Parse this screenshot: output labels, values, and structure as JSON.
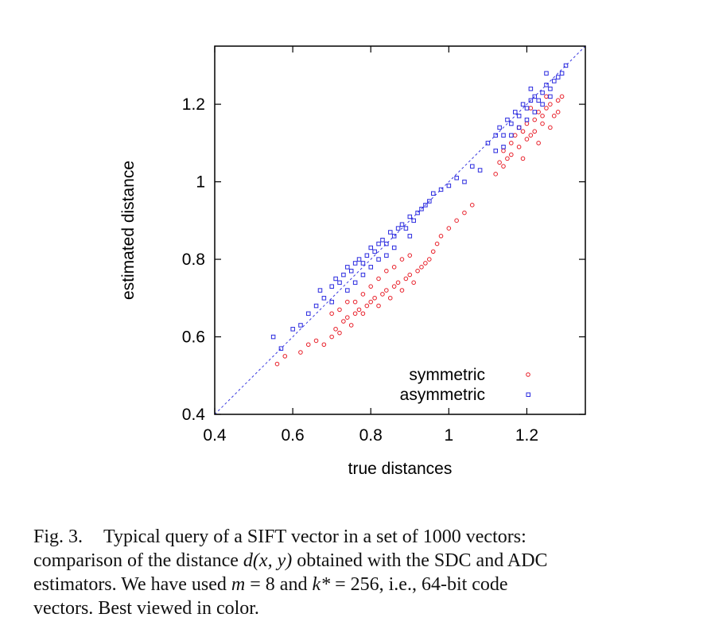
{
  "chart_data": {
    "type": "scatter",
    "xlabel": "true distances",
    "ylabel": "estimated distance",
    "xlim": [
      0.4,
      1.35
    ],
    "ylim": [
      0.4,
      1.35
    ],
    "xticks": [
      "0.4",
      "0.6",
      "0.8",
      "1",
      "1.2"
    ],
    "yticks": [
      "0.4",
      "0.6",
      "0.8",
      "1",
      "1.2"
    ],
    "xtick_values": [
      0.4,
      0.6,
      0.8,
      1.0,
      1.2
    ],
    "ytick_values": [
      0.4,
      0.6,
      0.8,
      1.0,
      1.2
    ],
    "reference_line": "y = x (dashed)",
    "legend_position": "bottom-right",
    "series": [
      {
        "name": "symmetric",
        "color": "#e8202a",
        "marker": "circle",
        "points": [
          [
            0.56,
            0.53
          ],
          [
            0.58,
            0.55
          ],
          [
            0.62,
            0.56
          ],
          [
            0.64,
            0.58
          ],
          [
            0.66,
            0.59
          ],
          [
            0.68,
            0.58
          ],
          [
            0.7,
            0.6
          ],
          [
            0.71,
            0.62
          ],
          [
            0.72,
            0.61
          ],
          [
            0.73,
            0.64
          ],
          [
            0.74,
            0.65
          ],
          [
            0.75,
            0.63
          ],
          [
            0.76,
            0.66
          ],
          [
            0.77,
            0.67
          ],
          [
            0.78,
            0.66
          ],
          [
            0.79,
            0.68
          ],
          [
            0.8,
            0.69
          ],
          [
            0.81,
            0.7
          ],
          [
            0.82,
            0.68
          ],
          [
            0.83,
            0.71
          ],
          [
            0.84,
            0.72
          ],
          [
            0.85,
            0.7
          ],
          [
            0.86,
            0.73
          ],
          [
            0.87,
            0.74
          ],
          [
            0.88,
            0.72
          ],
          [
            0.89,
            0.75
          ],
          [
            0.9,
            0.76
          ],
          [
            0.91,
            0.74
          ],
          [
            0.92,
            0.77
          ],
          [
            0.93,
            0.78
          ],
          [
            0.94,
            0.79
          ],
          [
            0.95,
            0.8
          ],
          [
            0.96,
            0.82
          ],
          [
            0.97,
            0.84
          ],
          [
            0.98,
            0.86
          ],
          [
            1.0,
            0.88
          ],
          [
            1.02,
            0.9
          ],
          [
            1.04,
            0.92
          ],
          [
            1.06,
            0.94
          ],
          [
            0.76,
            0.69
          ],
          [
            0.78,
            0.71
          ],
          [
            0.8,
            0.73
          ],
          [
            0.82,
            0.75
          ],
          [
            0.84,
            0.77
          ],
          [
            0.86,
            0.78
          ],
          [
            0.88,
            0.8
          ],
          [
            0.9,
            0.81
          ],
          [
            0.72,
            0.67
          ],
          [
            0.74,
            0.69
          ],
          [
            0.7,
            0.66
          ],
          [
            1.12,
            1.02
          ],
          [
            1.13,
            1.05
          ],
          [
            1.14,
            1.08
          ],
          [
            1.15,
            1.06
          ],
          [
            1.16,
            1.1
          ],
          [
            1.17,
            1.12
          ],
          [
            1.18,
            1.09
          ],
          [
            1.19,
            1.13
          ],
          [
            1.2,
            1.15
          ],
          [
            1.21,
            1.12
          ],
          [
            1.22,
            1.16
          ],
          [
            1.23,
            1.18
          ],
          [
            1.24,
            1.15
          ],
          [
            1.25,
            1.19
          ],
          [
            1.26,
            1.2
          ],
          [
            1.27,
            1.17
          ],
          [
            1.28,
            1.21
          ],
          [
            1.29,
            1.22
          ],
          [
            1.18,
            1.14
          ],
          [
            1.2,
            1.11
          ],
          [
            1.22,
            1.13
          ],
          [
            1.24,
            1.17
          ],
          [
            1.26,
            1.14
          ],
          [
            1.16,
            1.07
          ],
          [
            1.14,
            1.04
          ],
          [
            1.21,
            1.19
          ],
          [
            1.25,
            1.22
          ],
          [
            1.28,
            1.18
          ],
          [
            1.19,
            1.06
          ],
          [
            1.23,
            1.1
          ]
        ]
      },
      {
        "name": "asymmetric",
        "color": "#2a2adf",
        "marker": "square",
        "points": [
          [
            0.55,
            0.6
          ],
          [
            0.57,
            0.57
          ],
          [
            0.6,
            0.62
          ],
          [
            0.62,
            0.63
          ],
          [
            0.64,
            0.66
          ],
          [
            0.66,
            0.68
          ],
          [
            0.67,
            0.72
          ],
          [
            0.68,
            0.7
          ],
          [
            0.7,
            0.73
          ],
          [
            0.71,
            0.75
          ],
          [
            0.72,
            0.74
          ],
          [
            0.73,
            0.76
          ],
          [
            0.74,
            0.78
          ],
          [
            0.75,
            0.77
          ],
          [
            0.76,
            0.79
          ],
          [
            0.77,
            0.8
          ],
          [
            0.78,
            0.79
          ],
          [
            0.79,
            0.81
          ],
          [
            0.8,
            0.83
          ],
          [
            0.81,
            0.82
          ],
          [
            0.82,
            0.84
          ],
          [
            0.83,
            0.85
          ],
          [
            0.84,
            0.84
          ],
          [
            0.85,
            0.87
          ],
          [
            0.86,
            0.86
          ],
          [
            0.87,
            0.88
          ],
          [
            0.88,
            0.89
          ],
          [
            0.89,
            0.88
          ],
          [
            0.9,
            0.91
          ],
          [
            0.91,
            0.9
          ],
          [
            0.92,
            0.92
          ],
          [
            0.93,
            0.93
          ],
          [
            0.94,
            0.94
          ],
          [
            0.95,
            0.95
          ],
          [
            0.96,
            0.97
          ],
          [
            0.98,
            0.98
          ],
          [
            1.0,
            0.99
          ],
          [
            1.02,
            1.01
          ],
          [
            1.04,
            1.0
          ],
          [
            1.06,
            1.04
          ],
          [
            1.08,
            1.03
          ],
          [
            0.7,
            0.69
          ],
          [
            0.74,
            0.72
          ],
          [
            0.78,
            0.76
          ],
          [
            0.82,
            0.8
          ],
          [
            0.86,
            0.83
          ],
          [
            0.9,
            0.86
          ],
          [
            0.76,
            0.74
          ],
          [
            0.8,
            0.78
          ],
          [
            0.84,
            0.81
          ],
          [
            1.1,
            1.1
          ],
          [
            1.12,
            1.12
          ],
          [
            1.13,
            1.14
          ],
          [
            1.14,
            1.12
          ],
          [
            1.15,
            1.16
          ],
          [
            1.16,
            1.15
          ],
          [
            1.17,
            1.18
          ],
          [
            1.18,
            1.17
          ],
          [
            1.19,
            1.2
          ],
          [
            1.2,
            1.19
          ],
          [
            1.21,
            1.21
          ],
          [
            1.22,
            1.22
          ],
          [
            1.23,
            1.21
          ],
          [
            1.24,
            1.23
          ],
          [
            1.25,
            1.25
          ],
          [
            1.26,
            1.24
          ],
          [
            1.27,
            1.26
          ],
          [
            1.28,
            1.27
          ],
          [
            1.29,
            1.28
          ],
          [
            1.3,
            1.3
          ],
          [
            1.18,
            1.14
          ],
          [
            1.2,
            1.16
          ],
          [
            1.22,
            1.18
          ],
          [
            1.24,
            1.2
          ],
          [
            1.26,
            1.22
          ],
          [
            1.16,
            1.12
          ],
          [
            1.14,
            1.09
          ],
          [
            1.12,
            1.08
          ],
          [
            1.21,
            1.24
          ],
          [
            1.25,
            1.28
          ]
        ]
      }
    ]
  },
  "caption": {
    "label": "Fig. 3.",
    "line1": "Typical query of a SIFT vector in a set of 1000 vectors:",
    "line2_pre": "comparison of the distance ",
    "line2_math": "d(x, y)",
    "line2_post": " obtained with the SDC and ADC",
    "line3_pre": "estimators. We have used ",
    "line3_m": "m",
    "line3_mid": " = 8 and ",
    "line3_k": "k*",
    "line3_post": " = 256, i.e., 64-bit code",
    "line4": "vectors. Best viewed in color."
  }
}
